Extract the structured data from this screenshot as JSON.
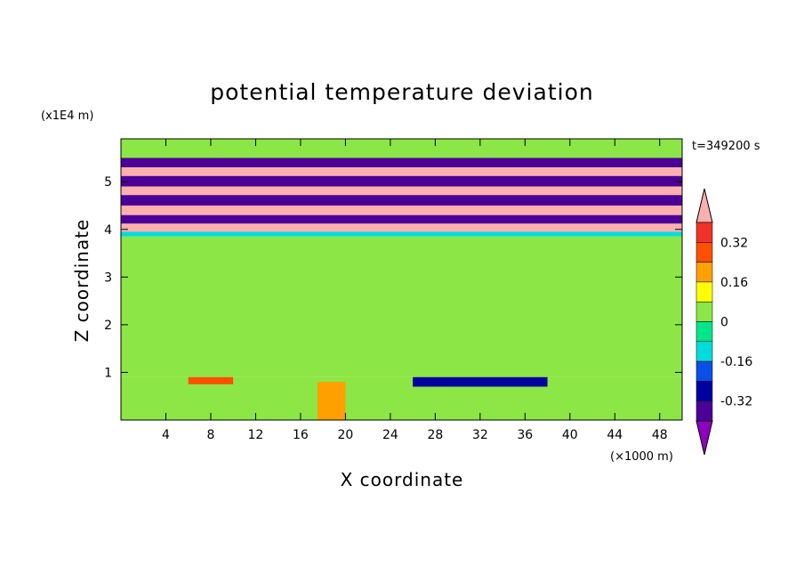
{
  "chart_data": {
    "type": "heatmap",
    "title": "potential temperature deviation",
    "xlabel": "X coordinate",
    "ylabel": "Z coordinate",
    "x_unit": "(×1000 m)",
    "y_unit": "(x1E4 m)",
    "time_label": "t=349200 s",
    "xlim": [
      0,
      50
    ],
    "ylim": [
      0,
      5.9
    ],
    "x_ticks": [
      4,
      8,
      12,
      16,
      20,
      24,
      28,
      32,
      36,
      40,
      44,
      48
    ],
    "y_ticks": [
      1,
      2,
      3,
      4,
      5
    ],
    "colorbar": {
      "levels": [
        -0.4,
        -0.32,
        -0.24,
        -0.16,
        -0.08,
        0,
        0.08,
        0.16,
        0.24,
        0.32,
        0.4
      ],
      "tick_labels": [
        "0.32",
        "0.16",
        "0",
        "-0.16",
        "-0.32"
      ],
      "tick_values": [
        0.32,
        0.16,
        0,
        -0.16,
        -0.32
      ],
      "colors_low_to_high": [
        "#9000c0",
        "#4b0096",
        "#0000a0",
        "#0a50e6",
        "#00dcdc",
        "#00e68c",
        "#8ce646",
        "#ffff00",
        "#ffa000",
        "#ff5000",
        "#f03228",
        "#ffafaf"
      ],
      "extend": "both"
    },
    "bands": [
      {
        "z_range": [
          5.5,
          5.9
        ],
        "value": 0.0
      },
      {
        "z_range": [
          5.3,
          5.5
        ],
        "value": -0.4
      },
      {
        "z_range": [
          5.12,
          5.3
        ],
        "value": 0.4
      },
      {
        "z_range": [
          4.9,
          5.12
        ],
        "value": -0.4
      },
      {
        "z_range": [
          4.72,
          4.9
        ],
        "value": 0.4
      },
      {
        "z_range": [
          4.5,
          4.72
        ],
        "value": -0.4
      },
      {
        "z_range": [
          4.3,
          4.5
        ],
        "value": 0.4
      },
      {
        "z_range": [
          4.12,
          4.3
        ],
        "value": -0.4
      },
      {
        "z_range": [
          3.95,
          4.12
        ],
        "value": 0.4
      },
      {
        "z_range": [
          3.85,
          3.95
        ],
        "value": -0.1
      },
      {
        "z_range": [
          0.9,
          3.85
        ],
        "value": 0.04
      },
      {
        "z_range": [
          0.0,
          0.9
        ],
        "value": 0.02
      }
    ],
    "annotations": [
      {
        "x_range": [
          17.5,
          20
        ],
        "z_range": [
          0,
          0.8
        ],
        "value": 0.16
      },
      {
        "x_range": [
          26,
          38
        ],
        "z_range": [
          0.7,
          0.9
        ],
        "value": -0.32
      },
      {
        "x_range": [
          6,
          10
        ],
        "z_range": [
          0.75,
          0.9
        ],
        "value": 0.24
      }
    ]
  }
}
